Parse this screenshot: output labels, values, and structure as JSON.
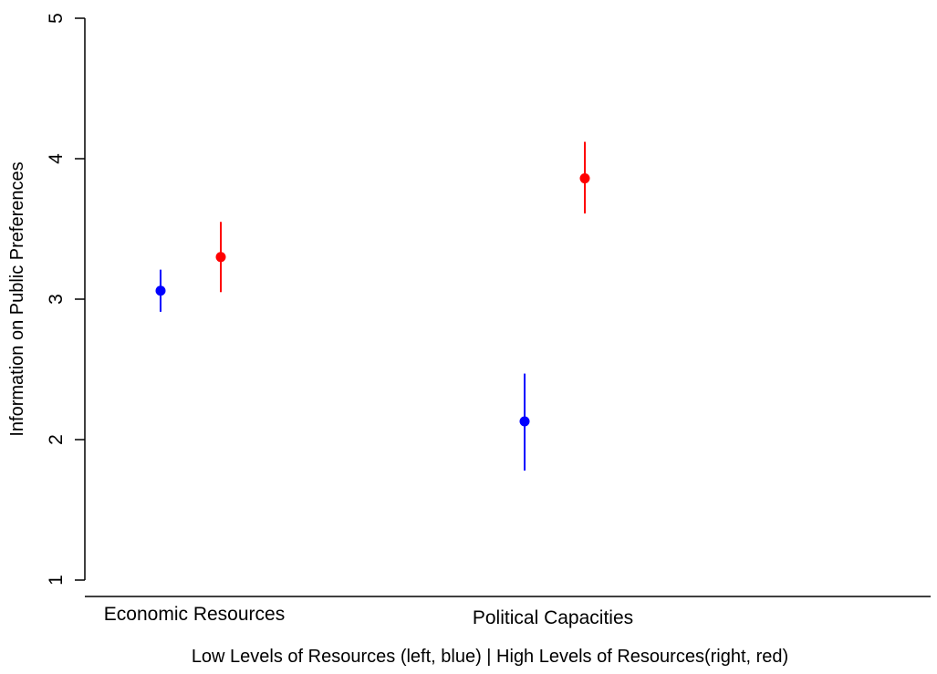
{
  "chart_data": {
    "type": "scatter",
    "ylabel": "Information on Public Preferences",
    "xlabel": "Low Levels of Resources (left, blue) | High Levels of Resources(right, red)",
    "ylim": [
      1,
      5
    ],
    "yticks": [
      "1",
      "2",
      "3",
      "4",
      "5"
    ],
    "categories": [
      "Economic Resources",
      "Political Capacities"
    ],
    "series": [
      {
        "color": "#0000ff",
        "points": [
          {
            "category": "Economic Resources",
            "y": 3.06,
            "low": 2.91,
            "high": 3.21
          },
          {
            "category": "Political Capacities",
            "y": 2.13,
            "low": 1.78,
            "high": 2.47
          }
        ]
      },
      {
        "color": "#ff0000",
        "points": [
          {
            "category": "Economic Resources",
            "y": 3.3,
            "low": 3.05,
            "high": 3.55
          },
          {
            "category": "Political Capacities",
            "y": 3.86,
            "low": 3.61,
            "high": 4.12
          }
        ]
      }
    ],
    "grid": false,
    "legend": "none"
  }
}
